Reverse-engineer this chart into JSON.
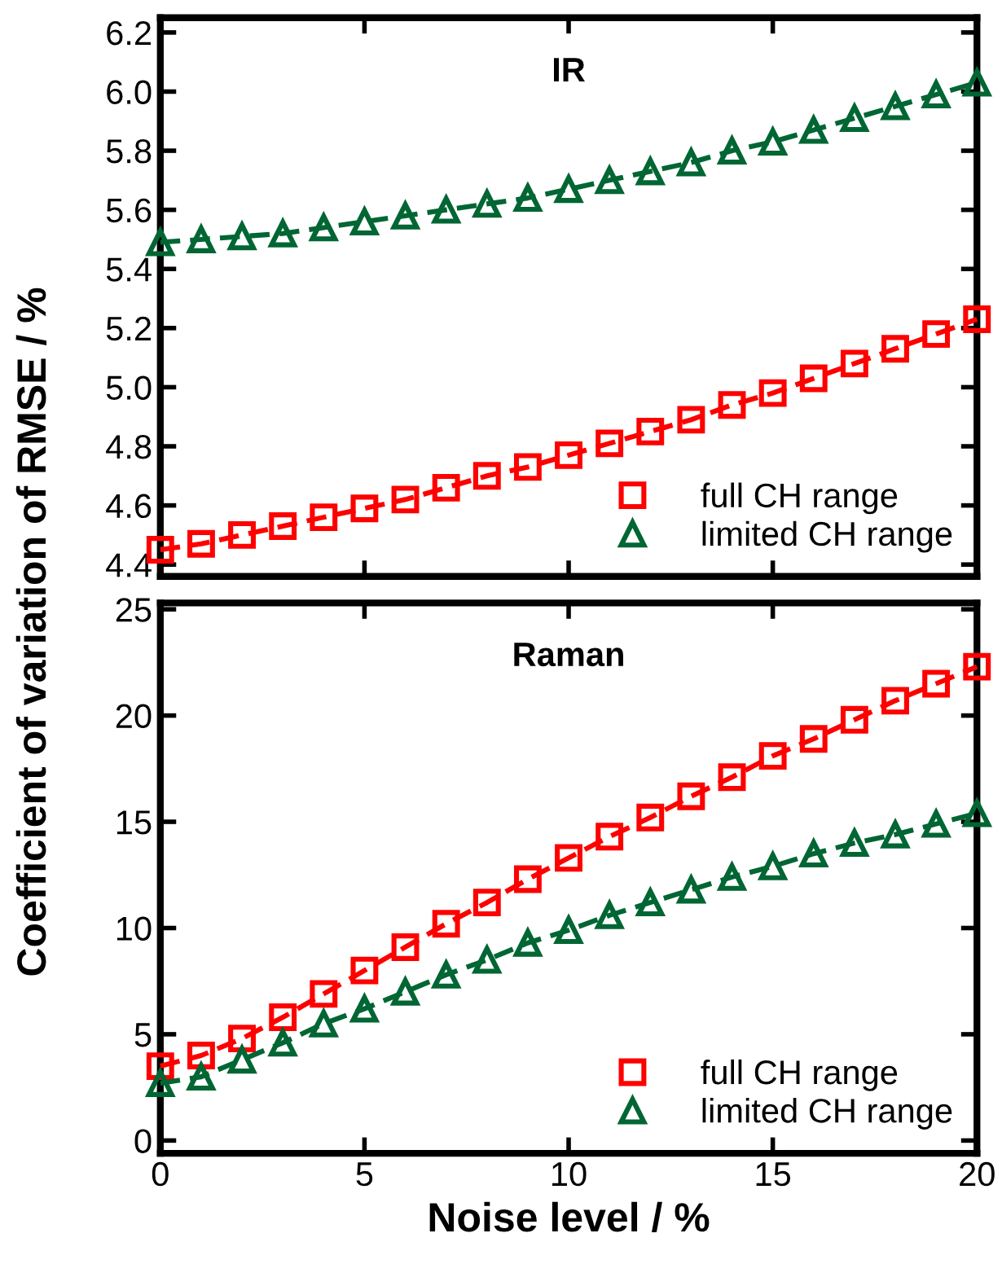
{
  "chart_data": [
    {
      "type": "line",
      "title": "IR",
      "ylabel": "Coefficient of variation of RMSE / %",
      "x": [
        0,
        1,
        2,
        3,
        4,
        5,
        6,
        7,
        8,
        9,
        10,
        11,
        12,
        13,
        14,
        15,
        16,
        17,
        18,
        19,
        20
      ],
      "xlim": [
        0,
        20
      ],
      "xticks": [
        0,
        5,
        10,
        15,
        20
      ],
      "ylim": [
        4.36,
        6.25
      ],
      "yticks": [
        {
          "value": 4.4,
          "label": "4.4"
        },
        {
          "value": 4.6,
          "label": "4.6"
        },
        {
          "value": 4.8,
          "label": "4.8"
        },
        {
          "value": 5.0,
          "label": "5.0"
        },
        {
          "value": 5.2,
          "label": "5.2"
        },
        {
          "value": 5.4,
          "label": "5.4"
        },
        {
          "value": 5.6,
          "label": "5.6"
        },
        {
          "value": 5.8,
          "label": "5.8"
        },
        {
          "value": 6.0,
          "label": "6.0"
        },
        {
          "value": 6.2,
          "label": "6.2"
        }
      ],
      "tick_labels": "y",
      "grid": false,
      "legend": "bottom right",
      "line_style": "dashed",
      "series": [
        {
          "name": "full CH range",
          "color": "#ff0000",
          "marker": "square",
          "values": [
            4.45,
            4.47,
            4.5,
            4.53,
            4.56,
            4.59,
            4.62,
            4.66,
            4.7,
            4.73,
            4.77,
            4.81,
            4.85,
            4.89,
            4.94,
            4.98,
            5.03,
            5.08,
            5.13,
            5.18,
            5.23
          ]
        },
        {
          "name": "limited CH range",
          "color": "#006633",
          "marker": "triangle",
          "values": [
            5.49,
            5.5,
            5.51,
            5.52,
            5.54,
            5.56,
            5.58,
            5.6,
            5.62,
            5.64,
            5.67,
            5.7,
            5.73,
            5.76,
            5.8,
            5.83,
            5.87,
            5.91,
            5.95,
            5.99,
            6.03
          ]
        }
      ]
    },
    {
      "type": "line",
      "title": "Raman",
      "xlabel": "Noise level / %",
      "x": [
        0,
        1,
        2,
        3,
        4,
        5,
        6,
        7,
        8,
        9,
        10,
        11,
        12,
        13,
        14,
        15,
        16,
        17,
        18,
        19,
        20
      ],
      "xlim": [
        0,
        20
      ],
      "xticks": [
        0,
        5,
        10,
        15,
        20
      ],
      "ylim": [
        -0.6,
        25.3
      ],
      "yticks": [
        0,
        5,
        10,
        15,
        20,
        25
      ],
      "grid": false,
      "legend": "bottom right",
      "line_style": "dashed",
      "series": [
        {
          "name": "full CH range",
          "color": "#ff0000",
          "marker": "square",
          "values": [
            3.5,
            4.0,
            4.8,
            5.8,
            6.9,
            8.0,
            9.1,
            10.2,
            11.2,
            12.3,
            13.3,
            14.3,
            15.2,
            16.2,
            17.1,
            18.1,
            18.9,
            19.8,
            20.7,
            21.5,
            22.3
          ]
        },
        {
          "name": "limited CH range",
          "color": "#006633",
          "marker": "triangle",
          "values": [
            2.7,
            3.0,
            3.8,
            4.6,
            5.5,
            6.2,
            7.0,
            7.8,
            8.5,
            9.3,
            9.9,
            10.6,
            11.2,
            11.8,
            12.4,
            12.9,
            13.5,
            14.0,
            14.4,
            14.9,
            15.4
          ]
        }
      ]
    }
  ]
}
